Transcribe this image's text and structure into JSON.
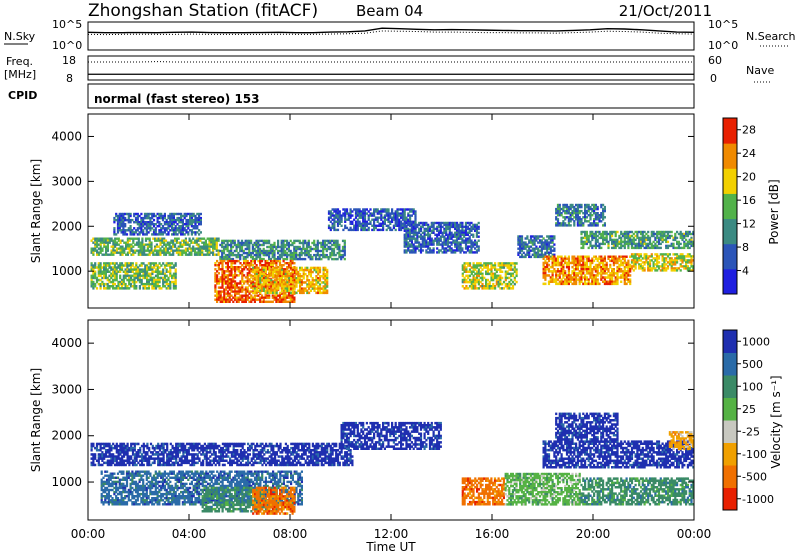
{
  "header": {
    "title": "Zhongshan Station (fitACF)",
    "beam": "Beam 04",
    "date": "21/Oct/2011"
  },
  "top_panels": {
    "nsky": {
      "label": "N.Sky",
      "right_label": "N.Search",
      "tick_top": "10^5",
      "tick_bottom": "10^0",
      "right_tick_top": "10^5",
      "right_tick_bottom": "10^0",
      "nsky_series": [
        3.15,
        3.1,
        3.1,
        3.12,
        3.1,
        3.15,
        3.2,
        3.12,
        3.1,
        3.1,
        3.12,
        3.15,
        3.1,
        3.1,
        3.2,
        3.25,
        3.4,
        3.9,
        3.8,
        3.7,
        3.6,
        3.65,
        3.6,
        3.55,
        3.5,
        3.45,
        3.45,
        3.4,
        3.5,
        3.6,
        3.8,
        3.75,
        3.6,
        3.4,
        3.2,
        3.15
      ],
      "nsearch_series": [
        2.8,
        2.75,
        2.8,
        2.82,
        2.8,
        2.8,
        2.85,
        2.8,
        2.78,
        2.8,
        2.8,
        2.82,
        2.8,
        2.8,
        2.85,
        2.9,
        3.0,
        3.4,
        3.35,
        3.3,
        3.2,
        3.2,
        3.15,
        3.1,
        3.1,
        3.05,
        3.05,
        3.0,
        3.1,
        3.2,
        3.35,
        3.3,
        3.2,
        3.0,
        2.9,
        2.85
      ]
    },
    "freq": {
      "label": "Freq.",
      "unit": "[MHz]",
      "right_label": "Nave",
      "tick_top": "18",
      "tick_bottom": "8",
      "right_tick_top": "60",
      "right_tick_bottom": "0",
      "freq_mhz": 10.4,
      "nave_series": [
        45,
        45,
        45,
        45,
        46,
        45,
        45,
        45,
        45,
        45,
        45,
        45,
        45,
        45,
        45,
        45,
        45,
        45,
        45,
        45,
        45,
        45,
        45,
        45,
        45,
        45,
        45,
        45,
        45,
        45,
        45,
        45,
        45,
        45,
        45,
        45
      ]
    },
    "cpid": {
      "label": "CPID",
      "text": "normal (fast stereo) 153"
    }
  },
  "chart_data": [
    {
      "type": "heatmap",
      "name": "power",
      "ylabel": "Slant Range [km]",
      "xlabel": "",
      "ylim": [
        180,
        4500
      ],
      "yticks": [
        "1000",
        "2000",
        "3000",
        "4000"
      ],
      "colorbar": {
        "label": "Power [dB]",
        "ticks": [
          "4",
          "8",
          "12",
          "16",
          "20",
          "24",
          "28"
        ],
        "range": [
          0,
          30
        ],
        "colors": [
          "#1f1fe0",
          "#2b55b8",
          "#3b8a82",
          "#52b24a",
          "#f2d000",
          "#f08a00",
          "#e82000"
        ]
      },
      "regions": [
        {
          "t0": 0.1,
          "t1": 5.2,
          "r0": 1350,
          "r1": 1750,
          "v": 14
        },
        {
          "t0": 5.2,
          "t1": 10.2,
          "r0": 1250,
          "r1": 1700,
          "v": 10
        },
        {
          "t0": 0.1,
          "t1": 3.5,
          "r0": 600,
          "r1": 1200,
          "v": 15
        },
        {
          "t0": 5.0,
          "t1": 8.2,
          "r0": 300,
          "r1": 1250,
          "v": 27
        },
        {
          "t0": 6.5,
          "t1": 9.5,
          "r0": 500,
          "r1": 1100,
          "v": 22
        },
        {
          "t0": 1.0,
          "t1": 4.5,
          "r0": 1800,
          "r1": 2300,
          "v": 6
        },
        {
          "t0": 9.5,
          "t1": 13.0,
          "r0": 1900,
          "r1": 2400,
          "v": 5
        },
        {
          "t0": 14.8,
          "t1": 17.0,
          "r0": 600,
          "r1": 1200,
          "v": 18
        },
        {
          "t0": 17.0,
          "t1": 18.5,
          "r0": 1300,
          "r1": 1800,
          "v": 7
        },
        {
          "t0": 18.0,
          "t1": 21.5,
          "r0": 700,
          "r1": 1350,
          "v": 24
        },
        {
          "t0": 21.5,
          "t1": 24.0,
          "r0": 1000,
          "r1": 1400,
          "v": 19
        },
        {
          "t0": 19.5,
          "t1": 24.0,
          "r0": 1500,
          "r1": 1900,
          "v": 12
        },
        {
          "t0": 12.5,
          "t1": 15.5,
          "r0": 1400,
          "r1": 2100,
          "v": 6
        },
        {
          "t0": 18.5,
          "t1": 20.5,
          "r0": 2000,
          "r1": 2500,
          "v": 8
        }
      ]
    },
    {
      "type": "heatmap",
      "name": "velocity",
      "ylabel": "Slant Range [km]",
      "xlabel": "Time UT",
      "ylim": [
        180,
        4500
      ],
      "yticks": [
        "1000",
        "2000",
        "3000",
        "4000"
      ],
      "xticks": [
        "00:00",
        "04:00",
        "08:00",
        "12:00",
        "16:00",
        "20:00",
        "00:00"
      ],
      "xlim": [
        0,
        24
      ],
      "colorbar": {
        "label": "Velocity [m s⁻¹]",
        "ticks": [
          "1000",
          "500",
          "100",
          "25",
          "-25",
          "-100",
          "-500",
          "-1000"
        ],
        "colors": [
          "#1f2fb0",
          "#2a6ba8",
          "#3a8a66",
          "#55b244",
          "#c8c8c0",
          "#f0a000",
          "#f07000",
          "#e82000"
        ]
      },
      "regions": [
        {
          "t0": 0.1,
          "t1": 10.5,
          "r0": 1350,
          "r1": 1850,
          "v": 0
        },
        {
          "t0": 0.5,
          "t1": 8.5,
          "r0": 500,
          "r1": 1250,
          "v": 1
        },
        {
          "t0": 4.5,
          "t1": 7.5,
          "r0": 350,
          "r1": 900,
          "v": 2
        },
        {
          "t0": 6.5,
          "t1": 8.2,
          "r0": 300,
          "r1": 900,
          "v": 6
        },
        {
          "t0": 10.0,
          "t1": 14.0,
          "r0": 1700,
          "r1": 2300,
          "v": 0
        },
        {
          "t0": 14.8,
          "t1": 16.5,
          "r0": 500,
          "r1": 1100,
          "v": 6
        },
        {
          "t0": 16.5,
          "t1": 19.5,
          "r0": 500,
          "r1": 1200,
          "v": 3
        },
        {
          "t0": 19.5,
          "t1": 24.0,
          "r0": 500,
          "r1": 1100,
          "v": 2
        },
        {
          "t0": 18.0,
          "t1": 24.0,
          "r0": 1300,
          "r1": 1900,
          "v": 0
        },
        {
          "t0": 18.5,
          "t1": 21.0,
          "r0": 1900,
          "r1": 2500,
          "v": 0
        },
        {
          "t0": 23.0,
          "t1": 24.0,
          "r0": 1700,
          "r1": 2100,
          "v": 5
        }
      ]
    }
  ]
}
